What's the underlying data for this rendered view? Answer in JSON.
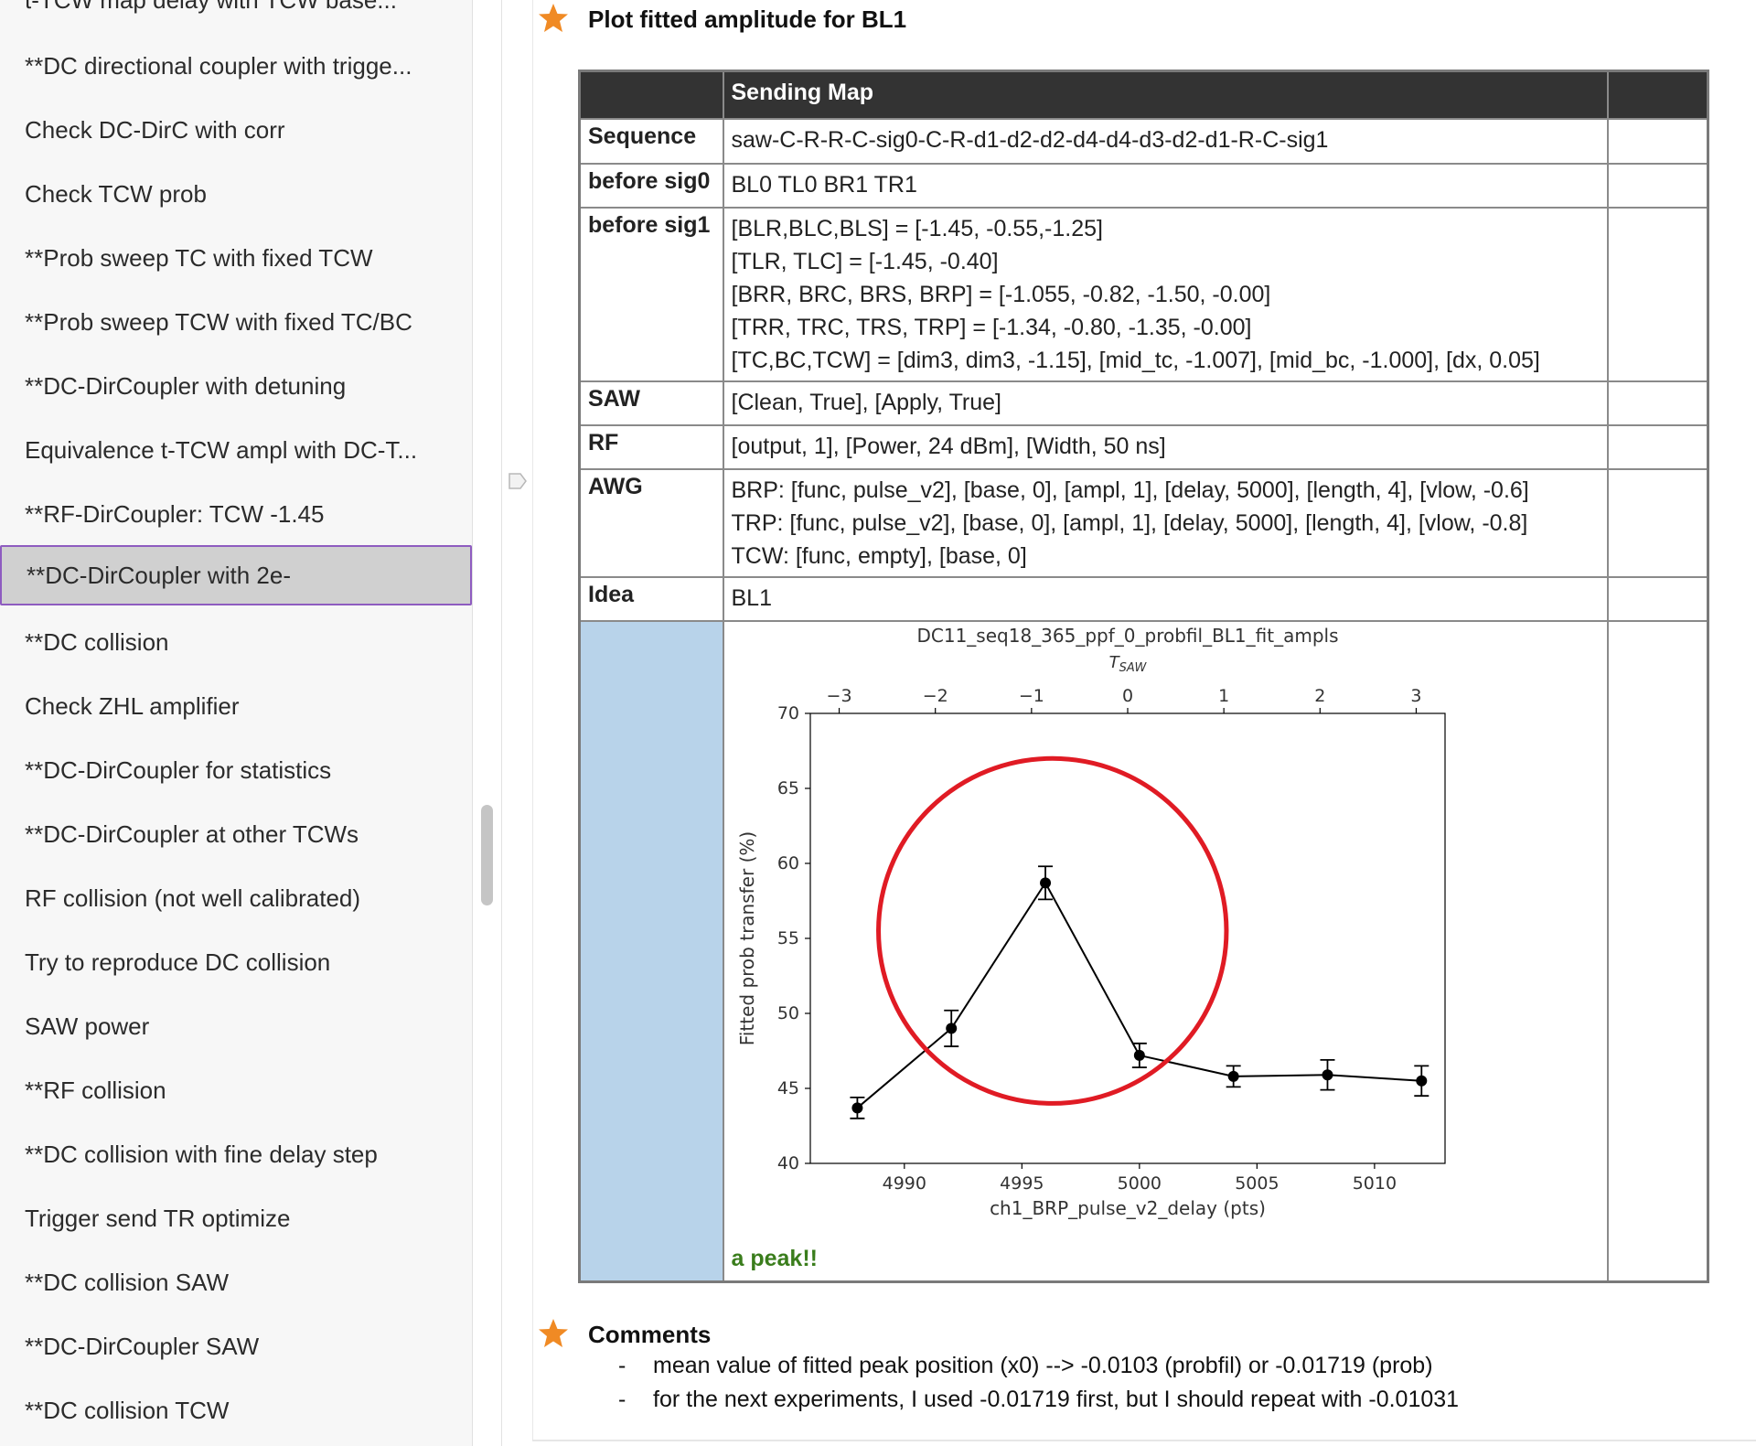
{
  "sidebar": {
    "items": [
      {
        "label": "t-TCW map delay with TCW base..."
      },
      {
        "label": "**DC directional coupler with trigge..."
      },
      {
        "label": "Check DC-DirC with corr"
      },
      {
        "label": "Check TCW prob"
      },
      {
        "label": "**Prob sweep TC with fixed TCW"
      },
      {
        "label": "**Prob sweep TCW with fixed TC/BC"
      },
      {
        "label": "**DC-DirCoupler with detuning"
      },
      {
        "label": "Equivalence t-TCW ampl with DC-T..."
      },
      {
        "label": "**RF-DirCoupler: TCW -1.45"
      },
      {
        "label": "**DC-DirCoupler with 2e-"
      },
      {
        "label": "**DC collision"
      },
      {
        "label": "Check ZHL amplifier"
      },
      {
        "label": "**DC-DirCoupler for statistics"
      },
      {
        "label": "**DC-DirCoupler at other TCWs"
      },
      {
        "label": "RF collision (not well calibrated)"
      },
      {
        "label": "Try to reproduce DC collision"
      },
      {
        "label": "SAW power"
      },
      {
        "label": "**RF collision"
      },
      {
        "label": "**DC collision with fine delay step"
      },
      {
        "label": "Trigger send TR optimize"
      },
      {
        "label": "**DC collision SAW"
      },
      {
        "label": "**DC-DirCoupler SAW"
      },
      {
        "label": "**DC collision TCW"
      }
    ],
    "selected_index": 9
  },
  "section1": {
    "title": "Plot fitted amplitude for BL1"
  },
  "table": {
    "header": "Sending Map",
    "rows": {
      "sequence": {
        "label": "Sequence",
        "lines": [
          "saw-C-R-R-C-sig0-C-R-d1-d2-d2-d4-d4-d3-d2-d1-R-C-sig1"
        ]
      },
      "before_sig0": {
        "label": "before sig0",
        "lines": [
          "BL0 TL0 BR1 TR1"
        ]
      },
      "before_sig1": {
        "label": "before sig1",
        "lines": [
          "[BLR,BLC,BLS] = [-1.45, -0.55,-1.25]",
          "[TLR, TLC] = [-1.45, -0.40]",
          "[BRR, BRC, BRS, BRP] = [-1.055, -0.82, -1.50, -0.00]",
          "[TRR, TRC, TRS, TRP] = [-1.34, -0.80, -1.35, -0.00]",
          "[TC,BC,TCW] = [dim3, dim3, -1.15], [mid_tc, -1.007], [mid_bc, -1.000], [dx, 0.05]"
        ]
      },
      "saw": {
        "label": "SAW",
        "lines": [
          "[Clean, True], [Apply, True]"
        ]
      },
      "rf": {
        "label": "RF",
        "lines": [
          "[output, 1], [Power, 24 dBm], [Width, 50 ns]"
        ]
      },
      "awg": {
        "label": "AWG",
        "lines": [
          "BRP: [func, pulse_v2], [base, 0], [ampl, 1], [delay, 5000], [length, 4], [vlow, -0.6]",
          "TRP: [func, pulse_v2], [base, 0], [ampl, 1], [delay, 5000], [length, 4], [vlow, -0.8]",
          "TCW: [func, empty], [base, 0]"
        ]
      },
      "idea": {
        "label": "Idea",
        "lines": [
          "BL1"
        ]
      }
    },
    "note": "a peak!!"
  },
  "chart_data": {
    "type": "line",
    "title": "DC11_seq18_365_ppf_0_probfil_BL1_fit_ampls",
    "x2label": "T_SAW",
    "xlabel": "ch1_BRP_pulse_v2_delay (pts)",
    "ylabel": "Fitted prob transfer (%)",
    "xlim": [
      4986,
      5013
    ],
    "ylim": [
      40,
      70
    ],
    "x2lim": [
      -3.3,
      3.3
    ],
    "xticks": [
      4990,
      4995,
      5000,
      5005,
      5010
    ],
    "yticks": [
      40,
      45,
      50,
      55,
      60,
      65,
      70
    ],
    "x2ticks": [
      -3,
      -2,
      -1,
      0,
      1,
      2,
      3
    ],
    "x": [
      4988,
      4992,
      4996,
      5000,
      5004,
      5008,
      5012
    ],
    "y": [
      43.7,
      49.0,
      58.7,
      47.2,
      45.8,
      45.9,
      45.5
    ],
    "yerr": [
      0.7,
      1.2,
      1.1,
      0.8,
      0.7,
      1.0,
      1.0
    ],
    "annotation": {
      "shape": "circle",
      "color": "#e01b24",
      "center": [
        4996.3,
        55.5
      ],
      "radius_x": 7.4,
      "radius_y": 11.5
    },
    "line_color": "#000000"
  },
  "section2": {
    "title": "Comments",
    "bullets": [
      "mean value of fitted peak position (x0) --> -0.0103 (probfil) or -0.01719 (prob)",
      "for the next experiments, I used -0.01719 first, but I should repeat with -0.01031"
    ]
  },
  "colors": {
    "star": "#f08a24",
    "selection_border": "#8e5cc0",
    "table_header": "#333333",
    "image_label_cell": "#b8d3ea",
    "note": "#3a7d1c"
  }
}
